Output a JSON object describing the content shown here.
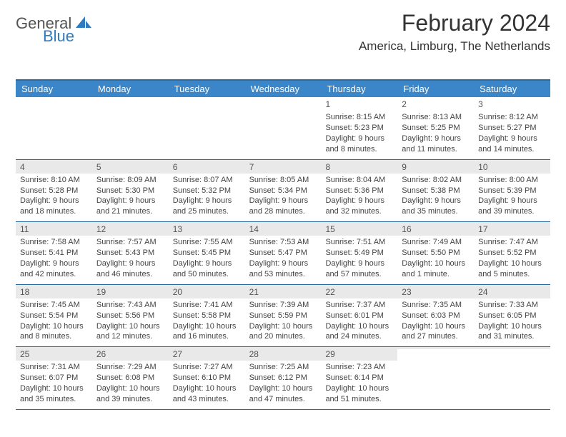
{
  "logo": {
    "general": "General",
    "blue": "Blue"
  },
  "title": "February 2024",
  "location": "America, Limburg, The Netherlands",
  "day_headers": [
    "Sunday",
    "Monday",
    "Tuesday",
    "Wednesday",
    "Thursday",
    "Friday",
    "Saturday"
  ],
  "colors": {
    "header_bg": "#3a86c8",
    "header_border": "#2a6aa2",
    "daynum_bg": "#e9e9e9",
    "text": "#333333",
    "logo_blue": "#2f7bbf"
  },
  "weeks": [
    [
      {
        "num": "",
        "sunrise": "",
        "sunset": "",
        "daylight1": "",
        "daylight2": ""
      },
      {
        "num": "",
        "sunrise": "",
        "sunset": "",
        "daylight1": "",
        "daylight2": ""
      },
      {
        "num": "",
        "sunrise": "",
        "sunset": "",
        "daylight1": "",
        "daylight2": ""
      },
      {
        "num": "",
        "sunrise": "",
        "sunset": "",
        "daylight1": "",
        "daylight2": ""
      },
      {
        "num": "1",
        "sunrise": "Sunrise: 8:15 AM",
        "sunset": "Sunset: 5:23 PM",
        "daylight1": "Daylight: 9 hours",
        "daylight2": "and 8 minutes."
      },
      {
        "num": "2",
        "sunrise": "Sunrise: 8:13 AM",
        "sunset": "Sunset: 5:25 PM",
        "daylight1": "Daylight: 9 hours",
        "daylight2": "and 11 minutes."
      },
      {
        "num": "3",
        "sunrise": "Sunrise: 8:12 AM",
        "sunset": "Sunset: 5:27 PM",
        "daylight1": "Daylight: 9 hours",
        "daylight2": "and 14 minutes."
      }
    ],
    [
      {
        "num": "4",
        "sunrise": "Sunrise: 8:10 AM",
        "sunset": "Sunset: 5:28 PM",
        "daylight1": "Daylight: 9 hours",
        "daylight2": "and 18 minutes."
      },
      {
        "num": "5",
        "sunrise": "Sunrise: 8:09 AM",
        "sunset": "Sunset: 5:30 PM",
        "daylight1": "Daylight: 9 hours",
        "daylight2": "and 21 minutes."
      },
      {
        "num": "6",
        "sunrise": "Sunrise: 8:07 AM",
        "sunset": "Sunset: 5:32 PM",
        "daylight1": "Daylight: 9 hours",
        "daylight2": "and 25 minutes."
      },
      {
        "num": "7",
        "sunrise": "Sunrise: 8:05 AM",
        "sunset": "Sunset: 5:34 PM",
        "daylight1": "Daylight: 9 hours",
        "daylight2": "and 28 minutes."
      },
      {
        "num": "8",
        "sunrise": "Sunrise: 8:04 AM",
        "sunset": "Sunset: 5:36 PM",
        "daylight1": "Daylight: 9 hours",
        "daylight2": "and 32 minutes."
      },
      {
        "num": "9",
        "sunrise": "Sunrise: 8:02 AM",
        "sunset": "Sunset: 5:38 PM",
        "daylight1": "Daylight: 9 hours",
        "daylight2": "and 35 minutes."
      },
      {
        "num": "10",
        "sunrise": "Sunrise: 8:00 AM",
        "sunset": "Sunset: 5:39 PM",
        "daylight1": "Daylight: 9 hours",
        "daylight2": "and 39 minutes."
      }
    ],
    [
      {
        "num": "11",
        "sunrise": "Sunrise: 7:58 AM",
        "sunset": "Sunset: 5:41 PM",
        "daylight1": "Daylight: 9 hours",
        "daylight2": "and 42 minutes."
      },
      {
        "num": "12",
        "sunrise": "Sunrise: 7:57 AM",
        "sunset": "Sunset: 5:43 PM",
        "daylight1": "Daylight: 9 hours",
        "daylight2": "and 46 minutes."
      },
      {
        "num": "13",
        "sunrise": "Sunrise: 7:55 AM",
        "sunset": "Sunset: 5:45 PM",
        "daylight1": "Daylight: 9 hours",
        "daylight2": "and 50 minutes."
      },
      {
        "num": "14",
        "sunrise": "Sunrise: 7:53 AM",
        "sunset": "Sunset: 5:47 PM",
        "daylight1": "Daylight: 9 hours",
        "daylight2": "and 53 minutes."
      },
      {
        "num": "15",
        "sunrise": "Sunrise: 7:51 AM",
        "sunset": "Sunset: 5:49 PM",
        "daylight1": "Daylight: 9 hours",
        "daylight2": "and 57 minutes."
      },
      {
        "num": "16",
        "sunrise": "Sunrise: 7:49 AM",
        "sunset": "Sunset: 5:50 PM",
        "daylight1": "Daylight: 10 hours",
        "daylight2": "and 1 minute."
      },
      {
        "num": "17",
        "sunrise": "Sunrise: 7:47 AM",
        "sunset": "Sunset: 5:52 PM",
        "daylight1": "Daylight: 10 hours",
        "daylight2": "and 5 minutes."
      }
    ],
    [
      {
        "num": "18",
        "sunrise": "Sunrise: 7:45 AM",
        "sunset": "Sunset: 5:54 PM",
        "daylight1": "Daylight: 10 hours",
        "daylight2": "and 8 minutes."
      },
      {
        "num": "19",
        "sunrise": "Sunrise: 7:43 AM",
        "sunset": "Sunset: 5:56 PM",
        "daylight1": "Daylight: 10 hours",
        "daylight2": "and 12 minutes."
      },
      {
        "num": "20",
        "sunrise": "Sunrise: 7:41 AM",
        "sunset": "Sunset: 5:58 PM",
        "daylight1": "Daylight: 10 hours",
        "daylight2": "and 16 minutes."
      },
      {
        "num": "21",
        "sunrise": "Sunrise: 7:39 AM",
        "sunset": "Sunset: 5:59 PM",
        "daylight1": "Daylight: 10 hours",
        "daylight2": "and 20 minutes."
      },
      {
        "num": "22",
        "sunrise": "Sunrise: 7:37 AM",
        "sunset": "Sunset: 6:01 PM",
        "daylight1": "Daylight: 10 hours",
        "daylight2": "and 24 minutes."
      },
      {
        "num": "23",
        "sunrise": "Sunrise: 7:35 AM",
        "sunset": "Sunset: 6:03 PM",
        "daylight1": "Daylight: 10 hours",
        "daylight2": "and 27 minutes."
      },
      {
        "num": "24",
        "sunrise": "Sunrise: 7:33 AM",
        "sunset": "Sunset: 6:05 PM",
        "daylight1": "Daylight: 10 hours",
        "daylight2": "and 31 minutes."
      }
    ],
    [
      {
        "num": "25",
        "sunrise": "Sunrise: 7:31 AM",
        "sunset": "Sunset: 6:07 PM",
        "daylight1": "Daylight: 10 hours",
        "daylight2": "and 35 minutes."
      },
      {
        "num": "26",
        "sunrise": "Sunrise: 7:29 AM",
        "sunset": "Sunset: 6:08 PM",
        "daylight1": "Daylight: 10 hours",
        "daylight2": "and 39 minutes."
      },
      {
        "num": "27",
        "sunrise": "Sunrise: 7:27 AM",
        "sunset": "Sunset: 6:10 PM",
        "daylight1": "Daylight: 10 hours",
        "daylight2": "and 43 minutes."
      },
      {
        "num": "28",
        "sunrise": "Sunrise: 7:25 AM",
        "sunset": "Sunset: 6:12 PM",
        "daylight1": "Daylight: 10 hours",
        "daylight2": "and 47 minutes."
      },
      {
        "num": "29",
        "sunrise": "Sunrise: 7:23 AM",
        "sunset": "Sunset: 6:14 PM",
        "daylight1": "Daylight: 10 hours",
        "daylight2": "and 51 minutes."
      },
      {
        "num": "",
        "sunrise": "",
        "sunset": "",
        "daylight1": "",
        "daylight2": ""
      },
      {
        "num": "",
        "sunrise": "",
        "sunset": "",
        "daylight1": "",
        "daylight2": ""
      }
    ]
  ]
}
